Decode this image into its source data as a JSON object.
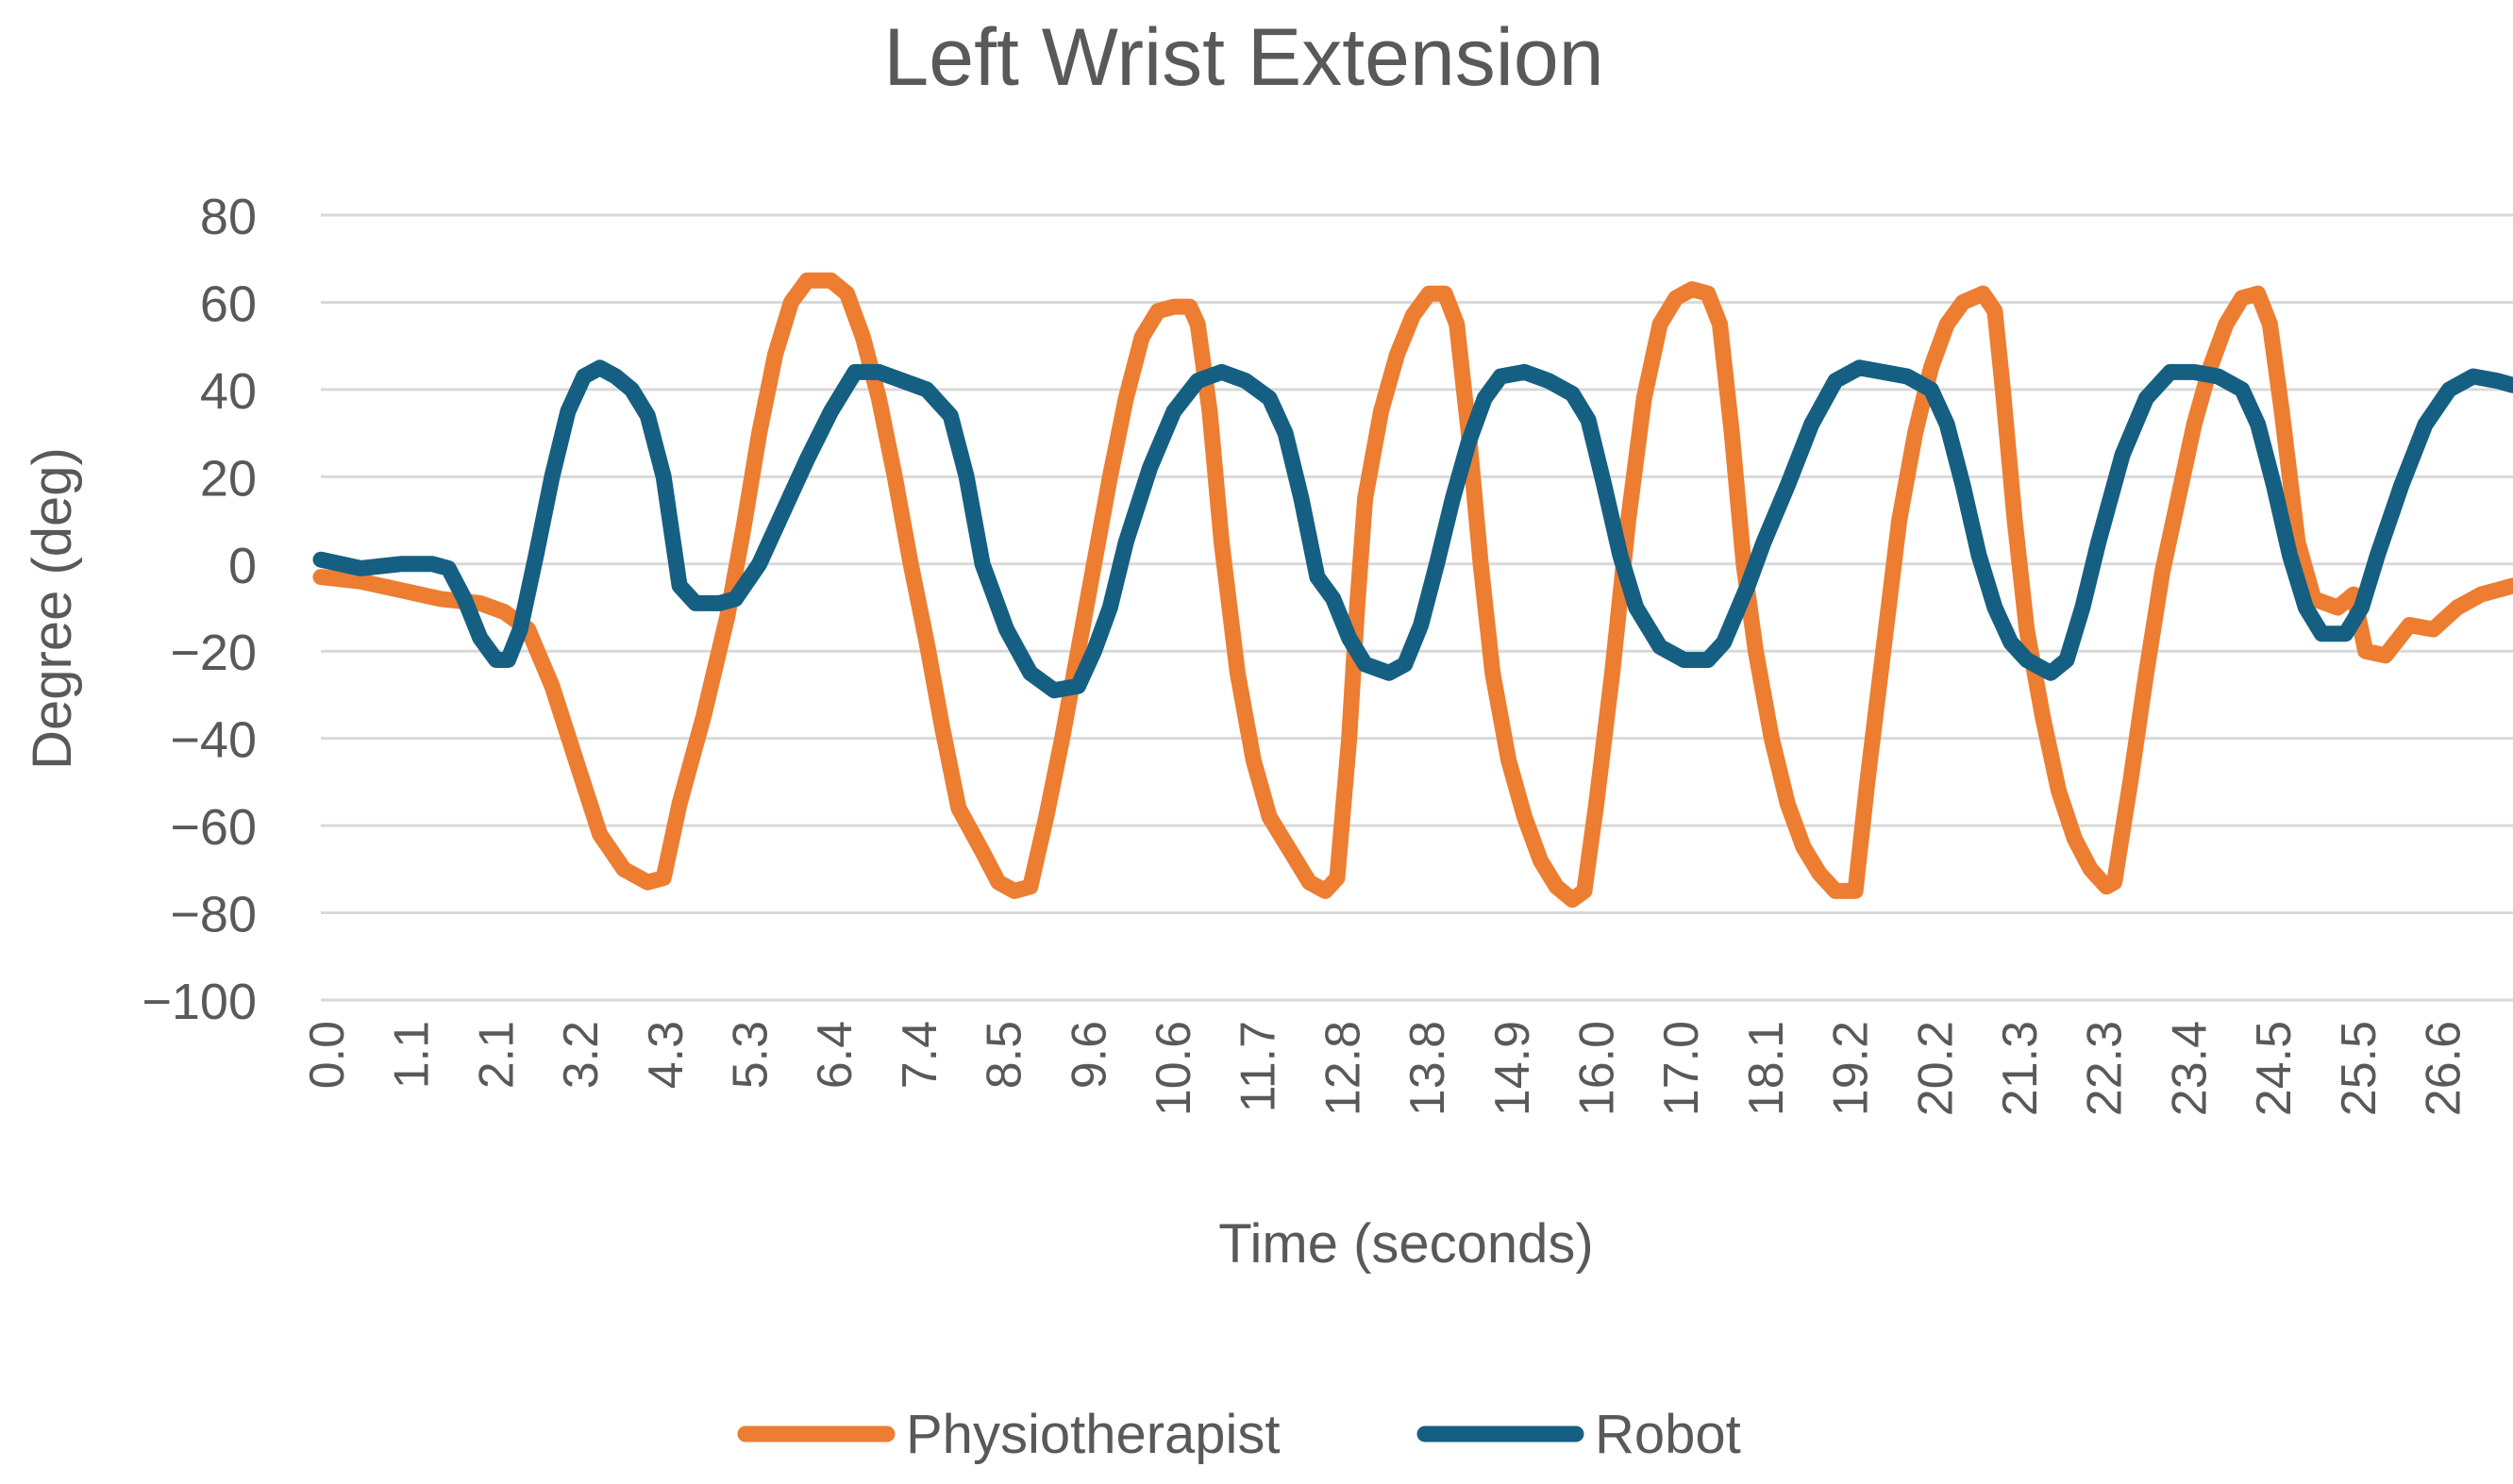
{
  "chart_data": {
    "type": "line",
    "title": "Left Wrist Extension",
    "xlabel": "Time (seconds)",
    "ylabel": "Degree (deg)",
    "ylim": [
      -100,
      80
    ],
    "xlim": [
      0,
      27.5
    ],
    "yticks": [
      "80",
      "60",
      "40",
      "20",
      "0",
      "−20",
      "−40",
      "−60",
      "−80",
      "−100"
    ],
    "ytick_values": [
      80,
      60,
      40,
      20,
      0,
      -20,
      -40,
      -60,
      -80,
      -100
    ],
    "xticks": [
      "0.0",
      "1.1",
      "2.1",
      "3.2",
      "4.3",
      "5.3",
      "6.4",
      "7.4",
      "8.5",
      "9.6",
      "10.6",
      "11.7",
      "12.8",
      "13.8",
      "14.9",
      "16.0",
      "17.0",
      "18.1",
      "19.2",
      "20.2",
      "21.3",
      "22.3",
      "23.4",
      "24.5",
      "25.5",
      "26.6"
    ],
    "grid": true,
    "legend_position": "bottom",
    "series": [
      {
        "name": "Physiotherapist",
        "color": "#ED7D31",
        "points": [
          [
            0.0,
            -3
          ],
          [
            0.5,
            -4
          ],
          [
            1.0,
            -6
          ],
          [
            1.5,
            -8
          ],
          [
            2.0,
            -9
          ],
          [
            2.3,
            -11
          ],
          [
            2.6,
            -15
          ],
          [
            2.9,
            -28
          ],
          [
            3.2,
            -45
          ],
          [
            3.5,
            -62
          ],
          [
            3.8,
            -70
          ],
          [
            4.1,
            -73
          ],
          [
            4.3,
            -72
          ],
          [
            4.5,
            -55
          ],
          [
            4.8,
            -35
          ],
          [
            5.1,
            -12
          ],
          [
            5.3,
            8
          ],
          [
            5.5,
            30
          ],
          [
            5.7,
            48
          ],
          [
            5.9,
            60
          ],
          [
            6.1,
            65
          ],
          [
            6.4,
            65
          ],
          [
            6.6,
            62
          ],
          [
            6.8,
            52
          ],
          [
            7.0,
            38
          ],
          [
            7.2,
            20
          ],
          [
            7.4,
            0
          ],
          [
            7.6,
            -18
          ],
          [
            7.8,
            -38
          ],
          [
            8.0,
            -56
          ],
          [
            8.3,
            -66
          ],
          [
            8.5,
            -73
          ],
          [
            8.7,
            -75
          ],
          [
            8.9,
            -74
          ],
          [
            9.1,
            -58
          ],
          [
            9.3,
            -40
          ],
          [
            9.5,
            -20
          ],
          [
            9.7,
            0
          ],
          [
            9.9,
            20
          ],
          [
            10.1,
            38
          ],
          [
            10.3,
            52
          ],
          [
            10.5,
            58
          ],
          [
            10.7,
            59
          ],
          [
            10.9,
            59
          ],
          [
            11.0,
            55
          ],
          [
            11.15,
            35
          ],
          [
            11.3,
            5
          ],
          [
            11.5,
            -25
          ],
          [
            11.7,
            -45
          ],
          [
            11.9,
            -58
          ],
          [
            12.2,
            -67
          ],
          [
            12.4,
            -73
          ],
          [
            12.6,
            -75
          ],
          [
            12.75,
            -72
          ],
          [
            12.9,
            -40
          ],
          [
            13.0,
            -10
          ],
          [
            13.1,
            15
          ],
          [
            13.3,
            35
          ],
          [
            13.5,
            48
          ],
          [
            13.7,
            57
          ],
          [
            13.9,
            62
          ],
          [
            14.1,
            62
          ],
          [
            14.25,
            55
          ],
          [
            14.4,
            30
          ],
          [
            14.55,
            0
          ],
          [
            14.7,
            -25
          ],
          [
            14.9,
            -45
          ],
          [
            15.1,
            -58
          ],
          [
            15.3,
            -68
          ],
          [
            15.5,
            -74
          ],
          [
            15.7,
            -77
          ],
          [
            15.85,
            -75
          ],
          [
            16.0,
            -55
          ],
          [
            16.2,
            -25
          ],
          [
            16.4,
            10
          ],
          [
            16.6,
            38
          ],
          [
            16.8,
            55
          ],
          [
            17.0,
            61
          ],
          [
            17.2,
            63
          ],
          [
            17.4,
            62
          ],
          [
            17.55,
            55
          ],
          [
            17.7,
            30
          ],
          [
            17.85,
            0
          ],
          [
            18.0,
            -20
          ],
          [
            18.2,
            -40
          ],
          [
            18.4,
            -55
          ],
          [
            18.6,
            -65
          ],
          [
            18.8,
            -71
          ],
          [
            19.0,
            -75
          ],
          [
            19.25,
            -75
          ],
          [
            19.4,
            -50
          ],
          [
            19.6,
            -20
          ],
          [
            19.8,
            10
          ],
          [
            20.0,
            30
          ],
          [
            20.2,
            45
          ],
          [
            20.4,
            55
          ],
          [
            20.6,
            60
          ],
          [
            20.85,
            62
          ],
          [
            21.0,
            58
          ],
          [
            21.1,
            40
          ],
          [
            21.25,
            10
          ],
          [
            21.4,
            -15
          ],
          [
            21.6,
            -35
          ],
          [
            21.8,
            -52
          ],
          [
            22.0,
            -63
          ],
          [
            22.2,
            -70
          ],
          [
            22.4,
            -74
          ],
          [
            22.5,
            -73
          ],
          [
            22.7,
            -50
          ],
          [
            22.9,
            -25
          ],
          [
            23.1,
            -2
          ],
          [
            23.3,
            15
          ],
          [
            23.5,
            32
          ],
          [
            23.7,
            45
          ],
          [
            23.9,
            55
          ],
          [
            24.1,
            61
          ],
          [
            24.3,
            62
          ],
          [
            24.45,
            55
          ],
          [
            24.6,
            35
          ],
          [
            24.8,
            5
          ],
          [
            25.0,
            -8
          ],
          [
            25.3,
            -10
          ],
          [
            25.5,
            -7
          ],
          [
            25.65,
            -20
          ],
          [
            25.9,
            -21
          ],
          [
            26.2,
            -14
          ],
          [
            26.5,
            -15
          ],
          [
            26.8,
            -10
          ],
          [
            27.1,
            -7
          ],
          [
            27.5,
            -5
          ]
        ]
      },
      {
        "name": "Robot",
        "color": "#156082",
        "points": [
          [
            0.0,
            1
          ],
          [
            0.5,
            -1
          ],
          [
            1.0,
            0
          ],
          [
            1.4,
            0
          ],
          [
            1.6,
            -1
          ],
          [
            1.8,
            -8
          ],
          [
            2.0,
            -17
          ],
          [
            2.2,
            -22
          ],
          [
            2.35,
            -22
          ],
          [
            2.5,
            -15
          ],
          [
            2.7,
            2
          ],
          [
            2.9,
            20
          ],
          [
            3.1,
            35
          ],
          [
            3.3,
            43
          ],
          [
            3.5,
            45
          ],
          [
            3.7,
            43
          ],
          [
            3.9,
            40
          ],
          [
            4.1,
            34
          ],
          [
            4.3,
            20
          ],
          [
            4.5,
            -5
          ],
          [
            4.7,
            -9
          ],
          [
            5.0,
            -9
          ],
          [
            5.2,
            -8
          ],
          [
            5.5,
            0
          ],
          [
            5.8,
            12
          ],
          [
            6.1,
            24
          ],
          [
            6.4,
            35
          ],
          [
            6.7,
            44
          ],
          [
            7.0,
            44
          ],
          [
            7.3,
            42
          ],
          [
            7.6,
            40
          ],
          [
            7.9,
            34
          ],
          [
            8.1,
            20
          ],
          [
            8.3,
            0
          ],
          [
            8.6,
            -15
          ],
          [
            8.9,
            -25
          ],
          [
            9.2,
            -29
          ],
          [
            9.5,
            -28
          ],
          [
            9.7,
            -20
          ],
          [
            9.9,
            -10
          ],
          [
            10.1,
            5
          ],
          [
            10.4,
            22
          ],
          [
            10.7,
            35
          ],
          [
            11.0,
            42
          ],
          [
            11.3,
            44
          ],
          [
            11.6,
            42
          ],
          [
            11.9,
            38
          ],
          [
            12.1,
            30
          ],
          [
            12.3,
            15
          ],
          [
            12.5,
            -3
          ],
          [
            12.7,
            -8
          ],
          [
            12.9,
            -17
          ],
          [
            13.1,
            -23
          ],
          [
            13.4,
            -25
          ],
          [
            13.6,
            -23
          ],
          [
            13.8,
            -14
          ],
          [
            14.0,
            0
          ],
          [
            14.2,
            15
          ],
          [
            14.4,
            28
          ],
          [
            14.6,
            38
          ],
          [
            14.8,
            43
          ],
          [
            15.1,
            44
          ],
          [
            15.4,
            42
          ],
          [
            15.7,
            39
          ],
          [
            15.9,
            33
          ],
          [
            16.1,
            18
          ],
          [
            16.3,
            2
          ],
          [
            16.5,
            -10
          ],
          [
            16.8,
            -19
          ],
          [
            17.1,
            -22
          ],
          [
            17.4,
            -22
          ],
          [
            17.6,
            -18
          ],
          [
            17.9,
            -5
          ],
          [
            18.1,
            5
          ],
          [
            18.4,
            18
          ],
          [
            18.7,
            32
          ],
          [
            19.0,
            42
          ],
          [
            19.3,
            45
          ],
          [
            19.6,
            44
          ],
          [
            19.9,
            43
          ],
          [
            20.2,
            40
          ],
          [
            20.4,
            32
          ],
          [
            20.6,
            18
          ],
          [
            20.8,
            2
          ],
          [
            21.0,
            -10
          ],
          [
            21.2,
            -18
          ],
          [
            21.4,
            -22
          ],
          [
            21.7,
            -25
          ],
          [
            21.9,
            -22
          ],
          [
            22.1,
            -10
          ],
          [
            22.3,
            5
          ],
          [
            22.6,
            25
          ],
          [
            22.9,
            38
          ],
          [
            23.2,
            44
          ],
          [
            23.5,
            44
          ],
          [
            23.8,
            43
          ],
          [
            24.1,
            40
          ],
          [
            24.3,
            32
          ],
          [
            24.5,
            18
          ],
          [
            24.7,
            2
          ],
          [
            24.9,
            -10
          ],
          [
            25.1,
            -16
          ],
          [
            25.4,
            -16
          ],
          [
            25.6,
            -10
          ],
          [
            25.8,
            2
          ],
          [
            26.1,
            18
          ],
          [
            26.4,
            32
          ],
          [
            26.7,
            40
          ],
          [
            27.0,
            43
          ],
          [
            27.3,
            42
          ],
          [
            27.5,
            41
          ]
        ]
      }
    ]
  }
}
